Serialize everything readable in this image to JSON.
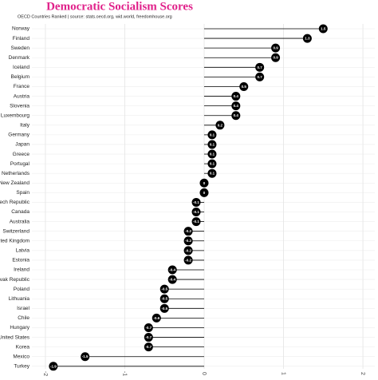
{
  "chart_data": {
    "type": "lollipop",
    "title": "Democratic Socialism Scores",
    "subtitle": "OECD Countries Ranked | source: stats.oecd.org, wid.world, freedomhouse.org",
    "title_color": "#e0218a",
    "color": "#000000",
    "categories": [
      "Norway",
      "Finland",
      "Sweden",
      "Denmark",
      "Iceland",
      "Belgium",
      "France",
      "Austria",
      "Slovenia",
      "Luxembourg",
      "Italy",
      "Germany",
      "Japan",
      "Greece",
      "Portugal",
      "Netherlands",
      "New Zealand",
      "Spain",
      "Czech Republic",
      "Canada",
      "Australia",
      "Switzerland",
      "United Kingdom",
      "Latvia",
      "Estonia",
      "Ireland",
      "Slovak Republic",
      "Poland",
      "Lithuania",
      "Israel",
      "Chile",
      "Hungary",
      "United States",
      "Korea",
      "Mexico",
      "Turkey"
    ],
    "values": [
      1.5,
      1.3,
      0.9,
      0.9,
      0.7,
      0.7,
      0.5,
      0.4,
      0.4,
      0.4,
      0.2,
      0.1,
      0.1,
      0.1,
      0.1,
      0.1,
      0,
      0,
      -0.1,
      -0.1,
      -0.1,
      -0.2,
      -0.2,
      -0.2,
      -0.2,
      -0.4,
      -0.4,
      -0.5,
      -0.5,
      -0.5,
      -0.6,
      -0.7,
      -0.7,
      -0.7,
      -1.5,
      -1.9
    ],
    "xlim": [
      -2.17,
      2.15
    ],
    "xticks": [
      -2,
      -1,
      0,
      1,
      2
    ],
    "grid": true
  }
}
